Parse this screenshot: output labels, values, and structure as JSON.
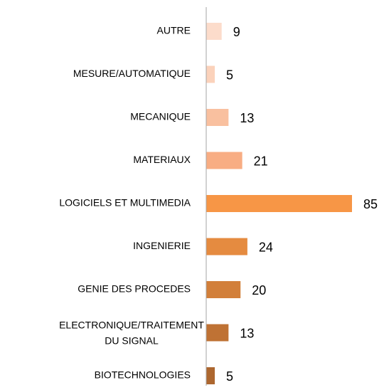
{
  "chart_data": {
    "type": "bar",
    "orientation": "horizontal",
    "categories": [
      "AUTRE",
      "MESURE/AUTOMATIQUE",
      "MECANIQUE",
      "MATERIAUX",
      "LOGICIELS ET MULTIMEDIA",
      "INGENIERIE",
      "GENIE DES PROCEDES",
      "ELECTRONIQUE/TRAITEMENT\nDU SIGNAL",
      "BIOTECHNOLOGIES"
    ],
    "values": [
      9,
      5,
      13,
      21,
      85,
      24,
      20,
      13,
      5
    ],
    "colors": [
      "#fcdccb",
      "#fbd2bb",
      "#f9c09f",
      "#f8ad83",
      "#f79646",
      "#e58b40",
      "#d27f3a",
      "#bf7234",
      "#ad672f"
    ]
  }
}
